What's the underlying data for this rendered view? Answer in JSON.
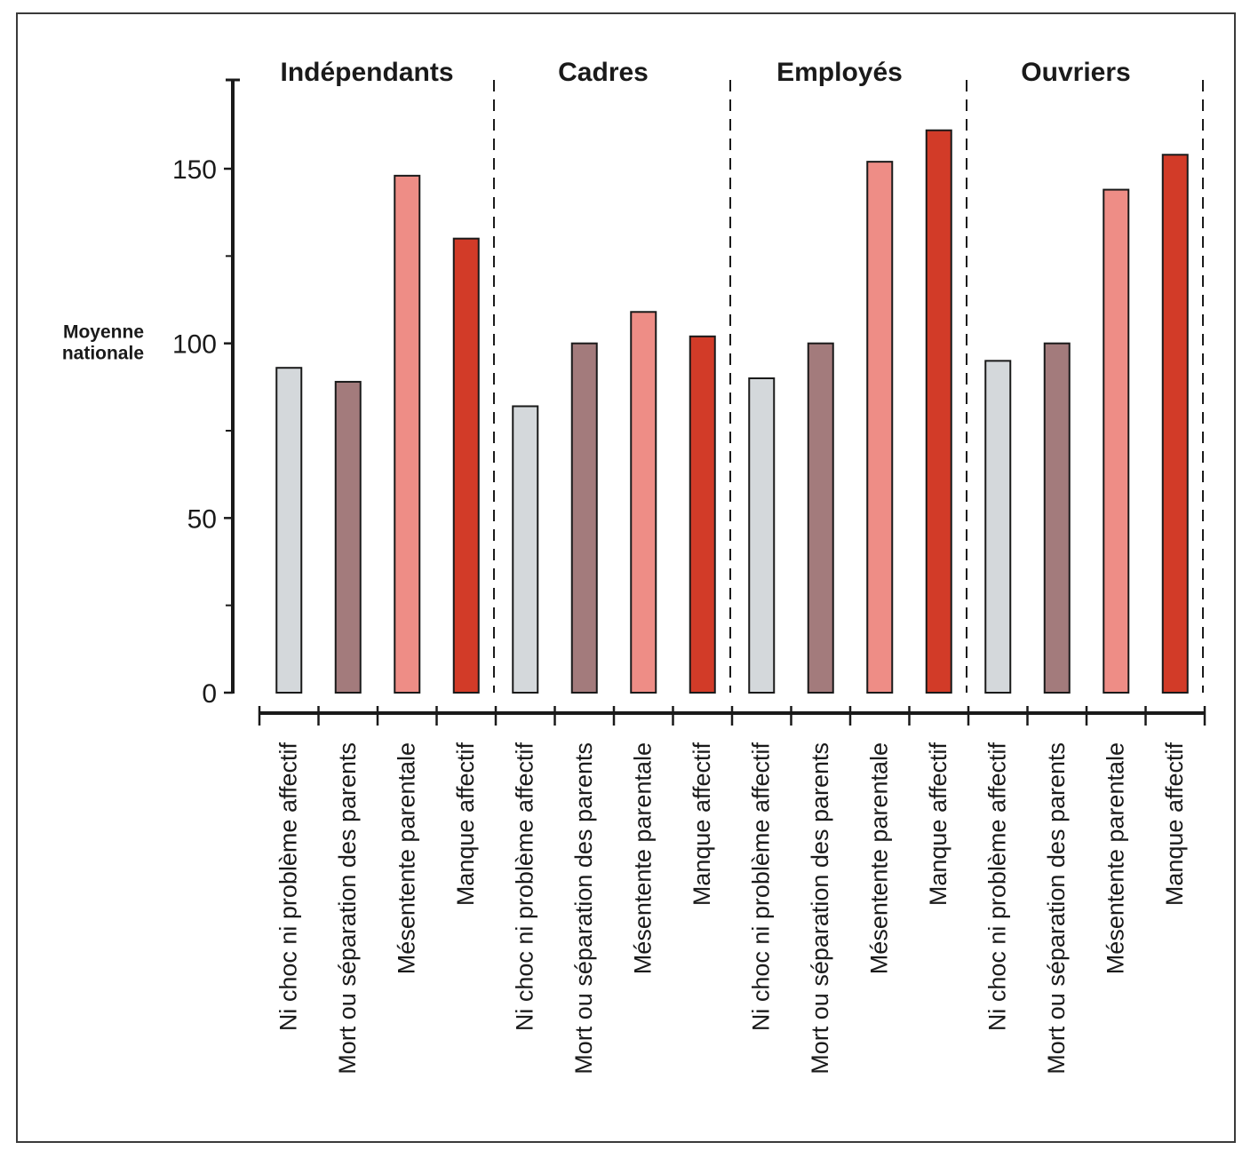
{
  "chart_data": {
    "type": "bar",
    "groups": [
      "Indépendants",
      "Cadres",
      "Employés",
      "Ouvriers"
    ],
    "categories": [
      "Ni choc ni problème affectif",
      "Mort ou séparation des parents",
      "Mésentente parentale",
      "Manque affectif"
    ],
    "series": [
      {
        "name": "Ni choc ni problème affectif",
        "color": "#d4d8db",
        "values": [
          93,
          82,
          90,
          95
        ]
      },
      {
        "name": "Mort ou séparation des parents",
        "color": "#a37b7c",
        "values": [
          89,
          100,
          100,
          100
        ]
      },
      {
        "name": "Mésentente parentale",
        "color": "#ee8d86",
        "values": [
          148,
          109,
          152,
          144
        ]
      },
      {
        "name": "Manque affectif",
        "color": "#d23b28",
        "values": [
          130,
          102,
          161,
          154
        ]
      }
    ],
    "y_ticks": [
      0,
      50,
      100,
      150
    ],
    "y_minor_ticks": [
      25,
      75,
      125
    ],
    "ylim": [
      0,
      175
    ],
    "reference": {
      "value": 100,
      "label_lines": [
        "Moyenne",
        "nationale"
      ]
    },
    "group_separators": "dashed",
    "grid": false,
    "legend": "none"
  }
}
